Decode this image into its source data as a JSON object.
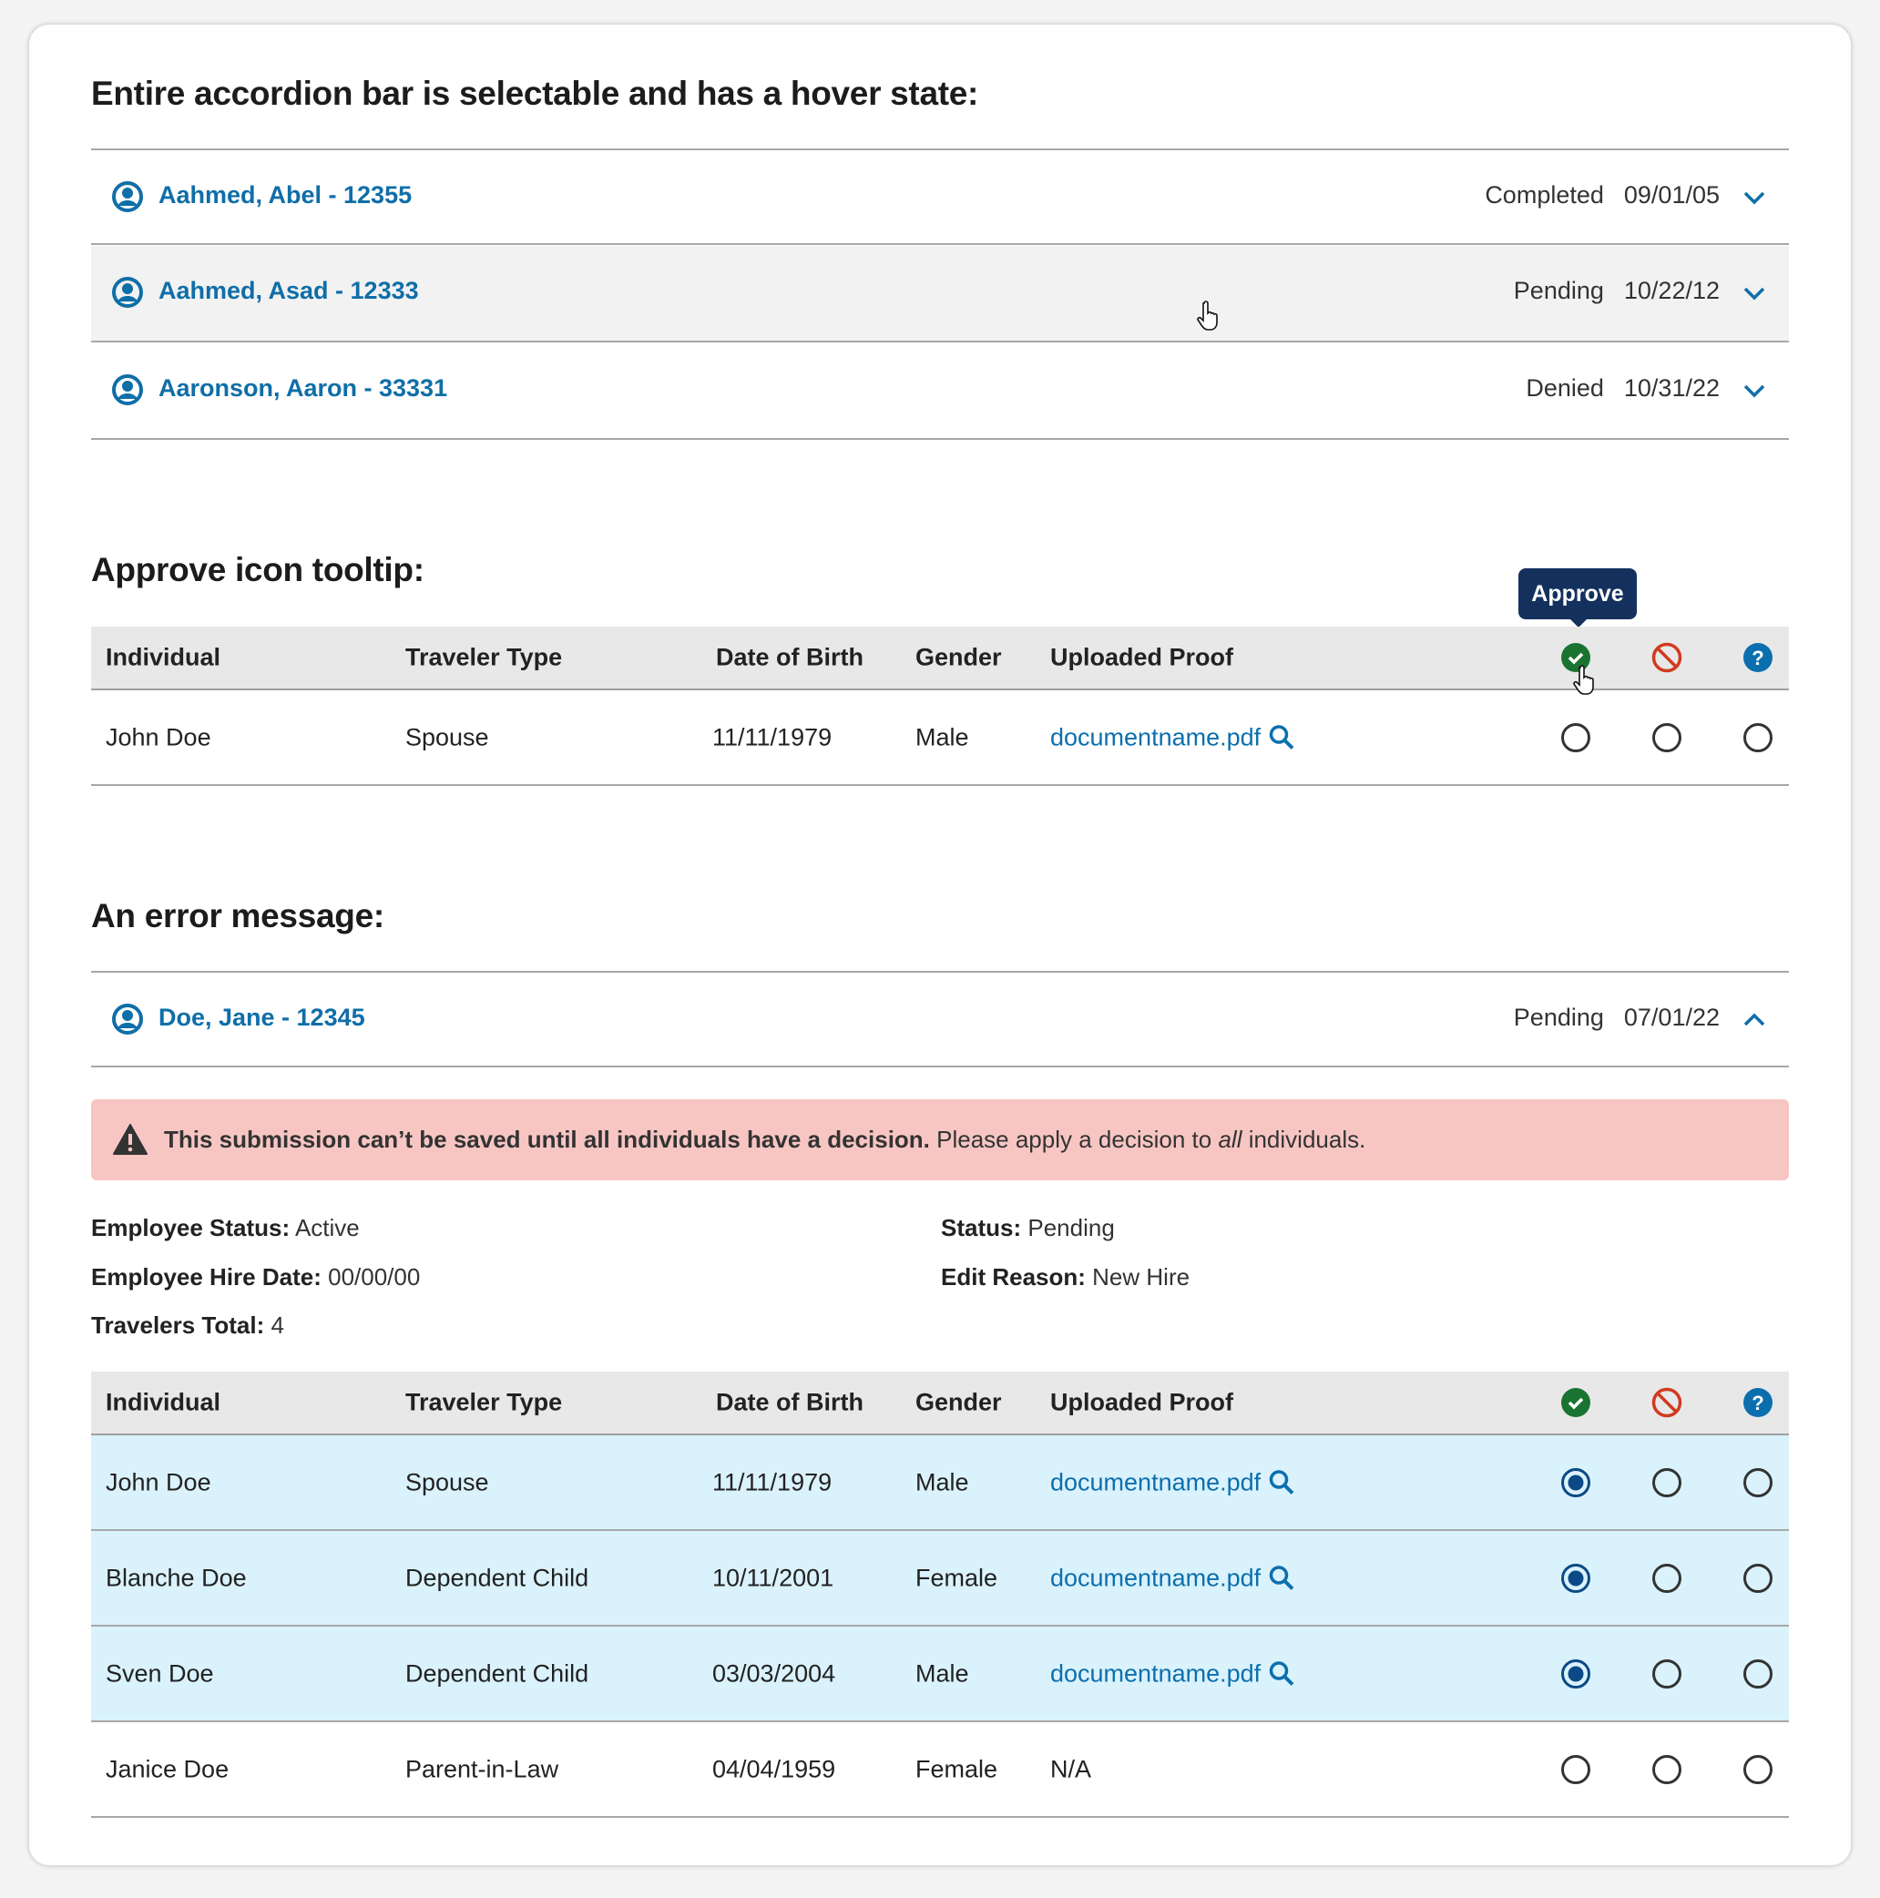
{
  "section1": {
    "heading": "Entire accordion bar is selectable and has a hover state:",
    "items": [
      {
        "name": "Aahmed, Abel - 12355",
        "status": "Completed",
        "date": "09/01/05",
        "expanded": false,
        "hover": false
      },
      {
        "name": "Aahmed, Asad - 12333",
        "status": "Pending",
        "date": "10/22/12",
        "expanded": false,
        "hover": true
      },
      {
        "name": "Aaronson, Aaron - 33331",
        "status": "Denied",
        "date": "10/31/22",
        "expanded": false,
        "hover": false
      }
    ]
  },
  "section2": {
    "heading": "Approve icon tooltip:",
    "tooltip": "Approve",
    "columns": [
      "Individual",
      "Traveler Type",
      "Date of Birth",
      "Gender",
      "Uploaded Proof"
    ],
    "decision_icons": [
      "approve-icon",
      "deny-icon",
      "help-icon"
    ],
    "rows": [
      {
        "individual": "John Doe",
        "type": "Spouse",
        "dob": "11/11/1979",
        "gender": "Male",
        "proof": "documentname.pdf",
        "decision": null
      }
    ]
  },
  "section3": {
    "heading": "An error message:",
    "accordion": {
      "name": "Doe, Jane - 12345",
      "status": "Pending",
      "date": "07/01/22",
      "expanded": true
    },
    "error": {
      "bold": "This submission can’t be saved until all individuals have a decision.",
      "text_before": " Please apply a decision to ",
      "emphasis": "all",
      "text_after": " individuals."
    },
    "info": {
      "employee_status_label": "Employee Status:",
      "employee_status": "Active",
      "hire_date_label": "Employee Hire Date:",
      "hire_date": "00/00/00",
      "travelers_total_label": "Travelers Total:",
      "travelers_total": "4",
      "status_label": "Status:",
      "status": "Pending",
      "edit_reason_label": "Edit Reason:",
      "edit_reason": "New Hire"
    },
    "columns": [
      "Individual",
      "Traveler Type",
      "Date of Birth",
      "Gender",
      "Uploaded Proof"
    ],
    "rows": [
      {
        "individual": "John Doe",
        "type": "Spouse",
        "dob": "11/11/1979",
        "gender": "Male",
        "proof": "documentname.pdf",
        "decision": "approve"
      },
      {
        "individual": "Blanche Doe",
        "type": "Dependent Child",
        "dob": "10/11/2001",
        "gender": "Female",
        "proof": "documentname.pdf",
        "decision": "approve"
      },
      {
        "individual": "Sven Doe",
        "type": "Dependent Child",
        "dob": "03/03/2004",
        "gender": "Male",
        "proof": "documentname.pdf",
        "decision": "approve"
      },
      {
        "individual": "Janice Doe",
        "type": "Parent-in-Law",
        "dob": "04/04/1959",
        "gender": "Female",
        "proof": "N/A",
        "decision": null
      }
    ]
  },
  "colors": {
    "link": "#0b6fae",
    "approve": "#1a7431",
    "deny": "#d13a1f",
    "help": "#0b6fae",
    "tooltip": "#14315e",
    "error_bg": "#f7c6c3",
    "selected_row": "#daf2fc",
    "hover_row": "#f2f2f2"
  }
}
